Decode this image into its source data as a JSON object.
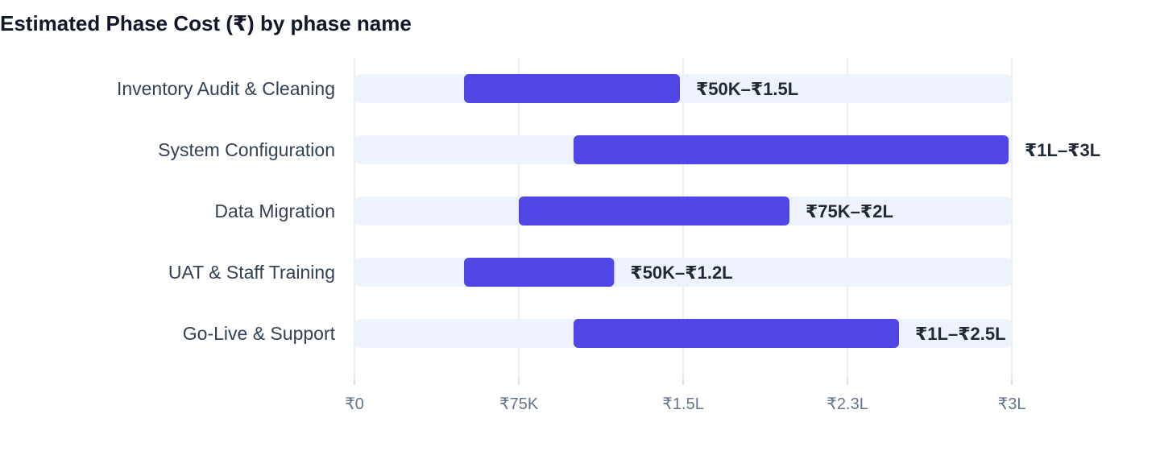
{
  "chart_data": {
    "type": "bar",
    "title": "Estimated Phase Cost (₹) by phase name",
    "orientation": "horizontal-range",
    "categories": [
      "Inventory Audit & Cleaning",
      "System Configuration",
      "Data Migration",
      "UAT & Staff Training",
      "Go-Live & Support"
    ],
    "ranges": [
      [
        50000,
        150000
      ],
      [
        100000,
        300000
      ],
      [
        75000,
        200000
      ],
      [
        50000,
        120000
      ],
      [
        100000,
        250000
      ]
    ],
    "labels": [
      "₹50K–₹1.5L",
      "₹1L–₹3L",
      "₹75K–₹2L",
      "₹50K–₹1.2L",
      "₹1L–₹2.5L"
    ],
    "xlim": [
      0,
      300000
    ],
    "xticks": [
      0,
      75000,
      150000,
      225000,
      300000
    ],
    "xtick_labels": [
      "₹0",
      "₹75K",
      "₹1.5L",
      "₹2.3L",
      "₹3L"
    ],
    "grid": true,
    "colors": {
      "bar": "#4f46e5",
      "track": "#eef2fd",
      "grid": "#e5e7eb"
    }
  }
}
